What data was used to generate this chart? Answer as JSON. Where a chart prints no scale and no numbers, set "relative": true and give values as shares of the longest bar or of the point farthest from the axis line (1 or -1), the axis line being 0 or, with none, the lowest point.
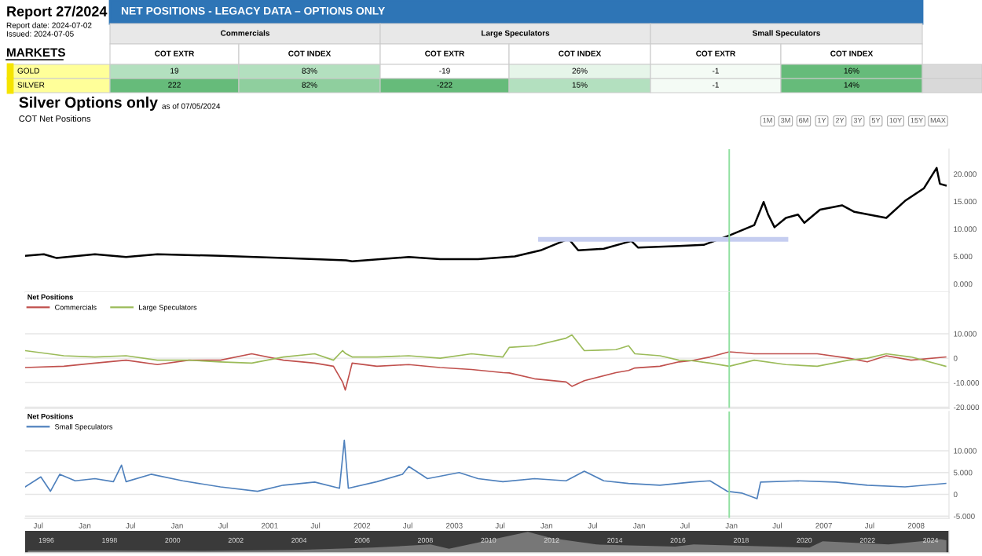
{
  "chart_data": [
    {
      "type": "other",
      "title": "NET POSITIONS - LEGACY DATA – OPTIONS ONLY",
      "annotations": [
        "Report 27/2024",
        "Report date: 2024-07-02",
        "Issued: 2024-07-05",
        "MARKETS",
        "Commercials",
        "Large Speculators",
        "Small Speculators"
      ],
      "categories": [
        "COT EXTR",
        "COT INDEX",
        "COT EXTR",
        "COT INDEX",
        "COT EXTR",
        "COT INDEX"
      ],
      "y_categories": [
        "GOLD",
        "SILVER"
      ],
      "cell_labels": [
        [
          "19",
          "83%",
          "-19",
          "26%",
          "-1",
          "16%"
        ],
        [
          "222",
          "82%",
          "-222",
          "15%",
          "-1",
          "14%"
        ]
      ],
      "colors": [
        "#b3e0bf",
        "#b3e0bf",
        "#ffffff",
        "#e6f5e9",
        "#f4fbf5",
        "#66bb7a",
        "#66bb7a",
        "#8fcf9e",
        "#66bb7a",
        "#b3e0bf",
        "#f4fbf5",
        "#66bb7a"
      ]
    },
    {
      "type": "line",
      "title": "Silver Options only",
      "subtitle": "as of 07/05/2024",
      "annotations": [
        "COT Net Positions",
        "1M",
        "3M",
        "6M",
        "1Y",
        "2Y",
        "3Y",
        "5Y",
        "10Y",
        "15Y",
        "MAX"
      ],
      "xlim": [
        "1998-05-10",
        "2008-05-10"
      ],
      "ylim": [
        -1.5,
        24.5
      ],
      "yticks": [
        {
          "value": 0,
          "label": "0.000"
        },
        {
          "value": 5,
          "label": "5.000"
        },
        {
          "value": 10,
          "label": "10.000"
        },
        {
          "value": 15,
          "label": "15.000"
        },
        {
          "value": 20,
          "label": "20.000"
        }
      ],
      "tick_labels": "y",
      "series": [
        {
          "color": "#000000",
          "x": [
            "1998-05-10",
            "1998-07-23",
            "1998-09-12",
            "1999-02-10",
            "1999-06-13",
            "1999-10-15",
            "2000-06-20",
            "2001-02-24",
            "2001-10-30",
            "2001-11-23",
            "2002-07-05",
            "2002-11-06",
            "2003-04-05",
            "2003-08-28",
            "2003-12-08",
            "2004-03-28",
            "2004-05-05",
            "2004-08-14",
            "2004-12-01",
            "2004-12-28",
            "2005-06-07",
            "2005-09-13",
            "2005-12-23",
            "2006-04-01",
            "2006-05-08",
            "2006-05-26",
            "2006-06-20",
            "2006-08-04",
            "2006-09-21",
            "2006-10-16",
            "2006-12-17",
            "2007-03-14",
            "2007-05-02",
            "2007-09-05",
            "2007-11-18",
            "2008-02-01",
            "2008-03-22",
            "2008-04-04",
            "2008-04-27"
          ],
          "values": [
            5.1,
            5.4,
            4.7,
            5.4,
            4.9,
            5.4,
            5.1,
            4.7,
            4.3,
            4.1,
            4.9,
            4.5,
            4.5,
            5.0,
            6.1,
            8.2,
            6.1,
            6.4,
            7.8,
            6.6,
            6.9,
            7.1,
            8.8,
            10.7,
            14.9,
            12.6,
            10.3,
            12.0,
            12.6,
            11.1,
            13.5,
            14.3,
            13.1,
            12.0,
            15.1,
            17.4,
            21.1,
            18.2,
            17.9
          ]
        },
        {
          "color": "#c5cdf0",
          "x": [
            "2003-12-08",
            "2006-08-04"
          ],
          "values": [
            8.1,
            8.1
          ]
        }
      ],
      "ref_lines": [
        {
          "axis": "x",
          "value": "2005-12-23",
          "color": "#90e0a0"
        }
      ]
    },
    {
      "type": "line",
      "legend_title": "Net Positions",
      "legend": "top left",
      "grid": "y",
      "xlim": [
        "1998-05-10",
        "2008-05-10"
      ],
      "ylim": [
        -20.5,
        27
      ],
      "yticks": [
        {
          "value": -20,
          "label": "-20.000"
        },
        {
          "value": -10,
          "label": "-10.000"
        },
        0,
        {
          "value": 10,
          "label": "10.000"
        }
      ],
      "tick_labels": "y",
      "x": [
        "1998-05-10",
        "1998-10-10",
        "1999-02-10",
        "1999-06-13",
        "1999-10-15",
        "2000-02-17",
        "2000-06-20",
        "2000-10-22",
        "2001-02-24",
        "2001-06-28",
        "2001-09-10",
        "2001-10-16",
        "2001-10-27",
        "2001-11-23",
        "2002-03-01",
        "2002-07-05",
        "2002-11-06",
        "2003-03-10",
        "2003-07-12",
        "2003-08-06",
        "2003-11-14",
        "2004-03-18",
        "2004-04-10",
        "2004-05-29",
        "2004-10-01",
        "2004-11-20",
        "2004-12-15",
        "2005-03-24",
        "2005-06-07",
        "2005-07-27",
        "2005-10-08",
        "2005-12-23",
        "2006-04-01",
        "2006-08-04",
        "2006-12-06",
        "2007-04-09",
        "2007-06-22",
        "2007-09-05",
        "2007-12-12",
        "2008-04-27"
      ],
      "series": [
        {
          "name": "Commercials",
          "color": "#c0504d",
          "values": [
            -3.8,
            -3.3,
            -2.0,
            -0.8,
            -2.6,
            -0.8,
            -0.8,
            1.8,
            -0.8,
            -2.0,
            -3.3,
            -9.7,
            -13.0,
            -2.0,
            -3.3,
            -2.6,
            -3.8,
            -4.6,
            -5.9,
            -6.0,
            -8.4,
            -9.7,
            -11.5,
            -9.2,
            -5.9,
            -5.0,
            -4.0,
            -3.3,
            -1.5,
            -1.0,
            0.5,
            2.6,
            1.8,
            1.8,
            1.8,
            0,
            -1.5,
            1.0,
            -0.8,
            0.5
          ]
        },
        {
          "name": "Large Speculators",
          "color": "#9bbb59",
          "values": [
            3.1,
            1.0,
            0.5,
            1.0,
            -0.8,
            -0.8,
            -1.5,
            -2.0,
            0.5,
            1.8,
            -0.8,
            3.1,
            2.0,
            0.5,
            0.5,
            1.0,
            0,
            1.8,
            0.5,
            4.4,
            5.1,
            8.2,
            9.5,
            3.1,
            3.5,
            5.1,
            1.8,
            1.0,
            -0.8,
            -1.0,
            -2.0,
            -3.3,
            -0.8,
            -2.6,
            -3.3,
            -0.8,
            0,
            1.8,
            0.5,
            -3.3
          ]
        }
      ],
      "ref_lines": [
        {
          "axis": "x",
          "value": "2005-12-23",
          "color": "#90e0a0"
        }
      ]
    },
    {
      "type": "line",
      "legend_title": "Net Positions",
      "legend": "top left",
      "grid": "y",
      "xlim": [
        "1998-05-10",
        "2008-05-10"
      ],
      "ylim": [
        -5.5,
        19
      ],
      "yticks": [
        {
          "value": -5,
          "label": "-5.000"
        },
        0,
        {
          "value": 5,
          "label": "5.000"
        },
        {
          "value": 10,
          "label": "10.000"
        }
      ],
      "xticks": [
        {
          "value": "1998-07-01",
          "label": "Jul"
        },
        {
          "value": "1999-01-01",
          "label": "Jan"
        },
        {
          "value": "1999-07-01",
          "label": "Jul"
        },
        {
          "value": "2000-01-01",
          "label": "Jan"
        },
        {
          "value": "2000-07-01",
          "label": "Jul"
        },
        {
          "value": "2001-01-01",
          "label": "2001"
        },
        {
          "value": "2001-07-01",
          "label": "Jul"
        },
        {
          "value": "2002-01-01",
          "label": "2002"
        },
        {
          "value": "2002-07-01",
          "label": "Jul"
        },
        {
          "value": "2003-01-01",
          "label": "2003"
        },
        {
          "value": "2003-07-01",
          "label": "Jul"
        },
        {
          "value": "2004-01-01",
          "label": "Jan"
        },
        {
          "value": "2004-07-01",
          "label": "Jul"
        },
        {
          "value": "2005-01-01",
          "label": "Jan"
        },
        {
          "value": "2005-07-01",
          "label": "Jul"
        },
        {
          "value": "2006-01-01",
          "label": "Jan"
        },
        {
          "value": "2006-07-01",
          "label": "Jul"
        },
        {
          "value": "2007-01-01",
          "label": "2007"
        },
        {
          "value": "2007-07-01",
          "label": "Jul"
        },
        {
          "value": "2008-01-01",
          "label": "2008"
        }
      ],
      "series": [
        {
          "name": "Small Speculators",
          "color": "#4f81bd",
          "x": [
            "1998-05-10",
            "1998-07-11",
            "1998-08-18",
            "1998-09-24",
            "1998-11-24",
            "1999-02-10",
            "1999-04-24",
            "1999-05-26",
            "1999-06-13",
            "1999-09-20",
            "2000-01-23",
            "2000-06-20",
            "2000-11-14",
            "2001-02-24",
            "2001-06-28",
            "2001-10-04",
            "2001-10-23",
            "2001-11-08",
            "2002-03-01",
            "2002-06-10",
            "2002-07-05",
            "2002-09-17",
            "2003-01-20",
            "2003-04-05",
            "2003-07-12",
            "2003-11-14",
            "2004-03-18",
            "2004-05-29",
            "2004-08-14",
            "2004-11-20",
            "2005-03-24",
            "2005-07-27",
            "2005-10-08",
            "2005-12-15",
            "2006-02-10",
            "2006-04-12",
            "2006-04-26",
            "2006-09-21",
            "2007-02-17",
            "2007-06-22",
            "2007-11-18",
            "2008-04-27"
          ],
          "values": [
            1.7,
            4.0,
            0.7,
            4.6,
            3.1,
            3.6,
            2.9,
            6.7,
            2.9,
            4.6,
            3.1,
            1.7,
            0.7,
            2.1,
            2.8,
            1.4,
            12.4,
            1.4,
            2.9,
            4.6,
            6.4,
            3.6,
            5.0,
            3.6,
            2.9,
            3.6,
            3.1,
            5.3,
            3.1,
            2.5,
            2.1,
            2.8,
            3.1,
            0.7,
            0.3,
            -1.0,
            2.8,
            3.1,
            2.8,
            2.1,
            1.7,
            2.5
          ]
        }
      ],
      "ref_lines": [
        {
          "axis": "x",
          "value": "2005-12-23",
          "color": "#90e0a0"
        }
      ]
    },
    {
      "type": "area",
      "relative": true,
      "tick_labels": "x",
      "xlim": [
        "1995-05-01",
        "2024-08-01"
      ],
      "xticks": [
        {
          "value": "1996-01-01",
          "label": "1996"
        },
        {
          "value": "1998-01-01",
          "label": "1998"
        },
        {
          "value": "2000-01-01",
          "label": "2000"
        },
        {
          "value": "2002-01-01",
          "label": "2002"
        },
        {
          "value": "2004-01-01",
          "label": "2004"
        },
        {
          "value": "2006-01-01",
          "label": "2006"
        },
        {
          "value": "2008-01-01",
          "label": "2008"
        },
        {
          "value": "2010-01-01",
          "label": "2010"
        },
        {
          "value": "2012-01-01",
          "label": "2012"
        },
        {
          "value": "2014-01-01",
          "label": "2014"
        },
        {
          "value": "2016-01-01",
          "label": "2016"
        },
        {
          "value": "2018-01-01",
          "label": "2018"
        },
        {
          "value": "2020-01-01",
          "label": "2020"
        },
        {
          "value": "2022-01-01",
          "label": "2022"
        },
        {
          "value": "2024-01-01",
          "label": "2024"
        }
      ],
      "series": [
        {
          "color": "#777777",
          "x": [
            "1995-06-01",
            "1998-01-01",
            "2001-01-01",
            "2004-01-01",
            "2006-05-01",
            "2008-03-01",
            "2008-10-01",
            "2011-04-01",
            "2012-01-01",
            "2013-06-01",
            "2015-12-01",
            "2016-07-01",
            "2019-01-01",
            "2020-03-01",
            "2020-08-01",
            "2022-09-01",
            "2024-05-01",
            "2024-07-01"
          ],
          "values": [
            0.1,
            0.11,
            0.09,
            0.14,
            0.25,
            0.4,
            0.2,
            1.0,
            0.7,
            0.4,
            0.3,
            0.4,
            0.3,
            0.25,
            0.55,
            0.4,
            0.65,
            0.6
          ]
        }
      ]
    }
  ]
}
